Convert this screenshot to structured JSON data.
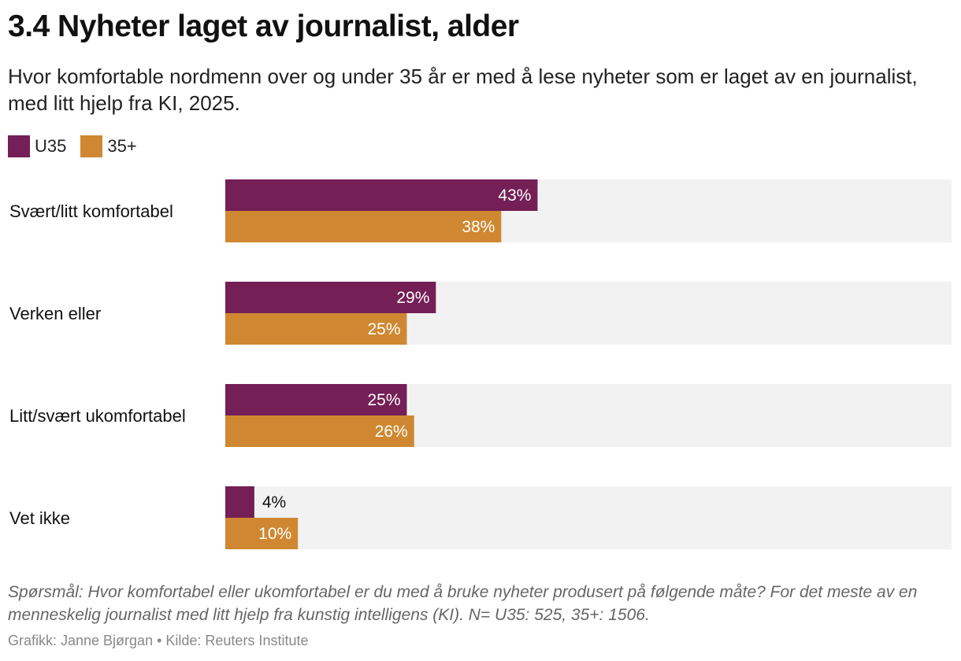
{
  "header": {
    "title": "3.4 Nyheter laget av journalist, alder",
    "subtitle": "Hvor komfortable nordmenn over og under 35 år er med å lese nyheter som er laget av en journalist, med litt hjelp fra KI, 2025."
  },
  "legend": [
    {
      "label": "U35",
      "color": "#741f56"
    },
    {
      "label": "35+",
      "color": "#cf8831"
    }
  ],
  "chart_data": {
    "type": "bar",
    "orientation": "horizontal",
    "categories": [
      "Svært/litt komfortabel",
      "Verken eller",
      "Litt/svært ukomfortabel",
      "Vet ikke"
    ],
    "series": [
      {
        "name": "U35",
        "color": "#741f56",
        "values": [
          43,
          29,
          25,
          4
        ],
        "labels": [
          "43%",
          "29%",
          "25%",
          "4%"
        ]
      },
      {
        "name": "35+",
        "color": "#cf8831",
        "values": [
          38,
          25,
          26,
          10
        ],
        "labels": [
          "38%",
          "25%",
          "26%",
          "10%"
        ]
      }
    ],
    "xlim": [
      0,
      100
    ],
    "background_track_color": "#f2f2f2",
    "grid": false,
    "legend_position": "top-left"
  },
  "footer": {
    "note": "Spørsmål: Hvor komfortabel eller ukomfortabel er du med å bruke nyheter produsert på følgende måte? For det meste av en menneskelig journalist med litt hjelp fra kunstig intelligens (KI). N= U35: 525, 35+: 1506.",
    "credit": "Grafikk: Janne Bjørgan • Kilde: Reuters Institute"
  }
}
